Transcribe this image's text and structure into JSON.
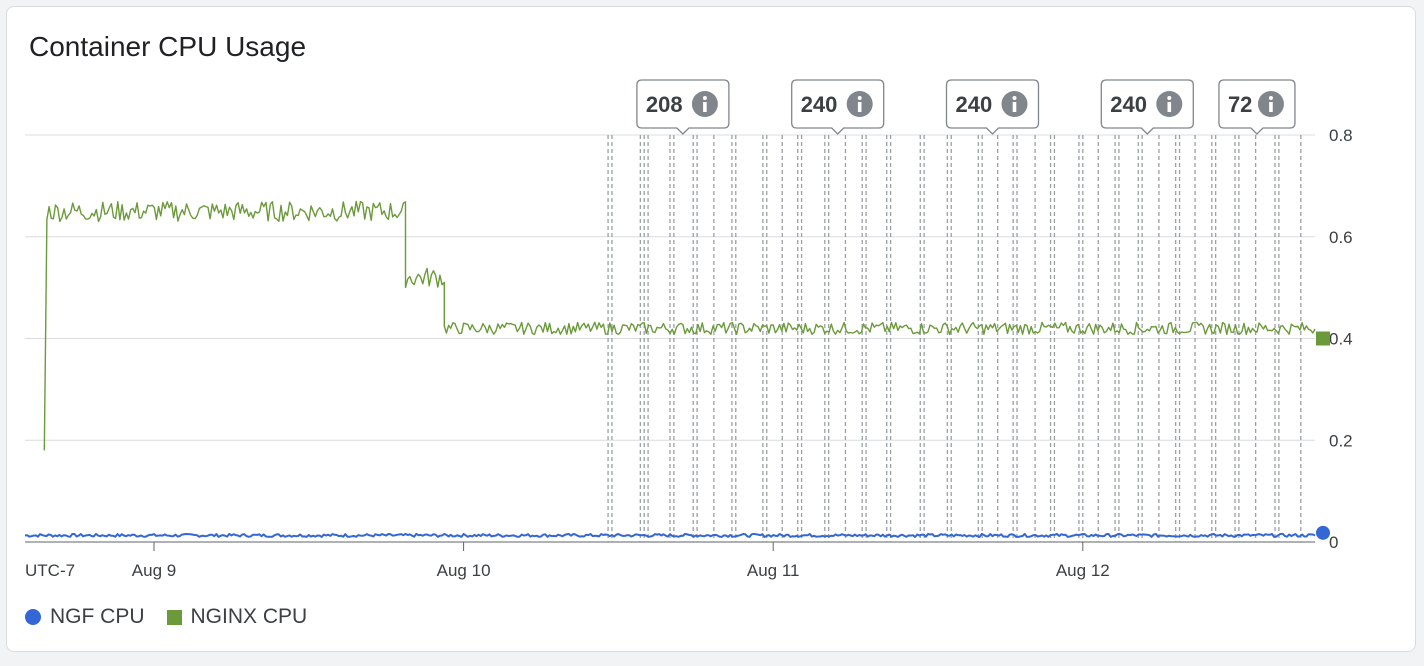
{
  "card": {
    "title": "Container CPU Usage"
  },
  "chart_data": {
    "type": "line",
    "title": "Container CPU Usage",
    "timezone_label": "UTC-7",
    "x_range_hours": [
      0,
      100
    ],
    "x_ticks": [
      {
        "label": "Aug 9",
        "hours": 10
      },
      {
        "label": "Aug 10",
        "hours": 34
      },
      {
        "label": "Aug 11",
        "hours": 58
      },
      {
        "label": "Aug 12",
        "hours": 82
      }
    ],
    "ylim": [
      0,
      0.8
    ],
    "y_ticks": [
      0,
      0.2,
      0.4,
      0.6,
      0.8
    ],
    "y_axis_side": "right",
    "grid": true,
    "legend_position": "bottom-left",
    "series": [
      {
        "name": "NGF CPU",
        "color": "#3367d6",
        "marker": "circle",
        "segments": [
          {
            "from": 0,
            "to": 100,
            "level": 0.013,
            "noise": 0.003
          }
        ],
        "last_value": 0.018
      },
      {
        "name": "NGINX CPU",
        "color": "#6b9a3a",
        "marker": "square",
        "segments": [
          {
            "from": 1.5,
            "to": 1.5,
            "level": 0.18,
            "noise": 0
          },
          {
            "from": 1.7,
            "to": 29.5,
            "level": 0.65,
            "noise": 0.02
          },
          {
            "from": 29.5,
            "to": 32.5,
            "level": 0.52,
            "noise": 0.02
          },
          {
            "from": 32.5,
            "to": 100,
            "level": 0.42,
            "noise": 0.012
          }
        ],
        "last_value": 0.4
      }
    ],
    "event_badges": [
      {
        "label": "208",
        "hours": 51
      },
      {
        "label": "240",
        "hours": 63
      },
      {
        "label": "240",
        "hours": 75
      },
      {
        "label": "240",
        "hours": 87
      },
      {
        "label": "72",
        "hours": 95.5
      }
    ],
    "event_marker_hours": [
      45.2,
      45.5,
      47.7,
      48.0,
      48.3,
      50.0,
      50.3,
      51.8,
      52.1,
      53.4,
      54.8,
      55.1,
      57.2,
      57.5,
      58.7,
      59.9,
      60.2,
      62.0,
      62.3,
      63.6,
      64.9,
      65.2,
      66.8,
      67.1,
      69.4,
      69.7,
      71.5,
      71.8,
      73.9,
      74.2,
      75.4,
      76.6,
      76.9,
      78.3,
      79.5,
      79.8,
      81.7,
      82.0,
      83.2,
      84.5,
      84.8,
      86.3,
      86.6,
      87.9,
      89.2,
      89.5,
      90.7,
      92.0,
      92.3,
      93.8,
      94.1,
      95.4,
      96.9,
      97.2,
      98.9
    ]
  },
  "legend": {
    "ngf_label": "NGF CPU",
    "nginx_label": "NGINX CPU",
    "ngf_color": "#3367d6",
    "nginx_color": "#6b9a3a"
  }
}
